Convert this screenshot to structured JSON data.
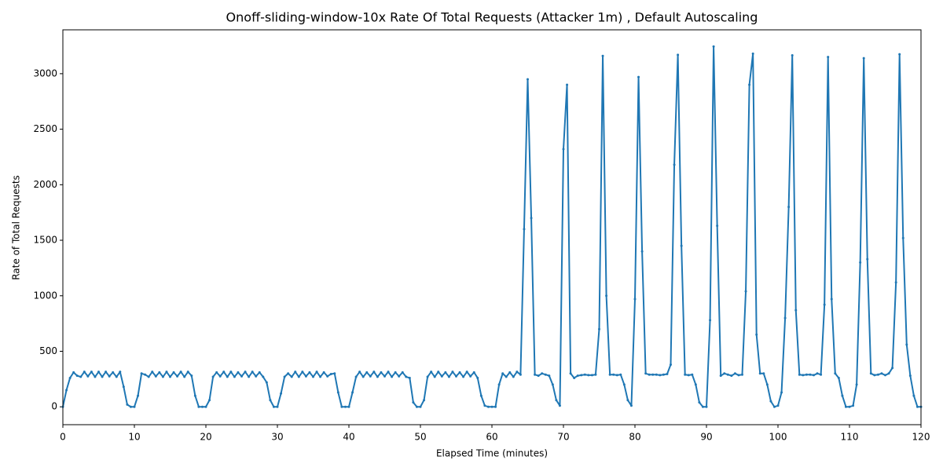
{
  "chart_data": {
    "type": "line",
    "title": "Onoff-sliding-window-10x Rate Of Total Requests (Attacker 1m) , Default Autoscaling",
    "xlabel": "Elapsed Time (minutes)",
    "ylabel": "Rate of Total Requests",
    "xlim": [
      0,
      120
    ],
    "xticks": [
      0,
      10,
      20,
      30,
      40,
      50,
      60,
      70,
      80,
      90,
      100,
      110,
      120
    ],
    "ylim": [
      -161,
      3395
    ],
    "yticks": [
      0,
      500,
      1000,
      1500,
      2000,
      2500,
      3000
    ],
    "grid": false,
    "x": [
      0,
      0.5,
      1,
      1.5,
      2,
      2.5,
      3,
      3.5,
      4,
      4.5,
      5,
      5.5,
      6,
      6.5,
      7,
      7.5,
      8,
      8.5,
      9,
      9.5,
      10,
      10.5,
      11,
      11.5,
      12,
      12.5,
      13,
      13.5,
      14,
      14.5,
      15,
      15.5,
      16,
      16.5,
      17,
      17.5,
      18,
      18.5,
      19,
      19.5,
      20,
      20.5,
      21,
      21.5,
      22,
      22.5,
      23,
      23.5,
      24,
      24.5,
      25,
      25.5,
      26,
      26.5,
      27,
      27.5,
      28,
      28.5,
      29,
      29.5,
      30,
      30.5,
      31,
      31.5,
      32,
      32.5,
      33,
      33.5,
      34,
      34.5,
      35,
      35.5,
      36,
      36.5,
      37,
      37.5,
      38,
      38.5,
      39,
      39.5,
      40,
      40.5,
      41,
      41.5,
      42,
      42.5,
      43,
      43.5,
      44,
      44.5,
      45,
      45.5,
      46,
      46.5,
      47,
      47.5,
      48,
      48.5,
      49,
      49.5,
      50,
      50.5,
      51,
      51.5,
      52,
      52.5,
      53,
      53.5,
      54,
      54.5,
      55,
      55.5,
      56,
      56.5,
      57,
      57.5,
      58,
      58.5,
      59,
      59.5,
      60,
      60.5,
      61,
      61.5,
      62,
      62.5,
      63,
      63.5,
      64,
      64.5,
      65,
      65.5,
      66,
      66.5,
      67,
      67.5,
      68,
      68.5,
      69,
      69.5,
      70,
      70.5,
      71,
      71.5,
      72,
      72.5,
      73,
      73.5,
      74,
      74.5,
      75,
      75.5,
      76,
      76.5,
      77,
      77.5,
      78,
      78.5,
      79,
      79.5,
      80,
      80.5,
      81,
      81.5,
      82,
      82.5,
      83,
      83.5,
      84,
      84.5,
      85,
      85.5,
      86,
      86.5,
      87,
      87.5,
      88,
      88.5,
      89,
      89.5,
      90,
      90.5,
      91,
      91.5,
      92,
      92.5,
      93,
      93.5,
      94,
      94.5,
      95,
      95.5,
      96,
      96.5,
      97,
      97.5,
      98,
      98.5,
      99,
      99.5,
      100,
      100.5,
      101,
      101.5,
      102,
      102.5,
      103,
      103.5,
      104,
      104.5,
      105,
      105.5,
      106,
      106.5,
      107,
      107.5,
      108,
      108.5,
      109,
      109.5,
      110,
      110.5,
      111,
      111.5,
      112,
      112.5,
      113,
      113.5,
      114,
      114.5,
      115,
      115.5,
      116,
      116.5,
      117,
      117.5,
      118,
      118.5,
      119,
      119.5,
      120
    ],
    "series": [
      {
        "color": "#1f77b4",
        "values": [
          0,
          150,
          260,
          310,
          280,
          270,
          315,
          275,
          315,
          270,
          315,
          270,
          315,
          275,
          310,
          270,
          315,
          180,
          20,
          0,
          0,
          100,
          300,
          290,
          270,
          315,
          275,
          310,
          270,
          315,
          270,
          310,
          275,
          315,
          270,
          315,
          280,
          100,
          0,
          0,
          0,
          60,
          270,
          310,
          275,
          315,
          270,
          315,
          270,
          310,
          275,
          315,
          270,
          315,
          275,
          310,
          270,
          220,
          60,
          0,
          0,
          120,
          270,
          300,
          270,
          315,
          270,
          315,
          275,
          310,
          270,
          315,
          270,
          310,
          275,
          295,
          300,
          130,
          0,
          0,
          0,
          130,
          270,
          315,
          270,
          310,
          275,
          315,
          270,
          310,
          275,
          315,
          270,
          310,
          275,
          310,
          270,
          260,
          40,
          0,
          0,
          60,
          270,
          315,
          270,
          315,
          275,
          310,
          270,
          315,
          275,
          310,
          270,
          315,
          275,
          310,
          260,
          100,
          10,
          0,
          0,
          0,
          200,
          300,
          270,
          310,
          270,
          315,
          290,
          1600,
          2950,
          1700,
          290,
          280,
          300,
          290,
          280,
          200,
          60,
          10,
          2320,
          2900,
          300,
          260,
          280,
          285,
          290,
          285,
          285,
          290,
          700,
          3160,
          1000,
          290,
          290,
          285,
          290,
          200,
          60,
          10,
          970,
          2970,
          1400,
          300,
          290,
          290,
          290,
          285,
          290,
          295,
          380,
          2180,
          3170,
          1450,
          290,
          285,
          290,
          200,
          40,
          0,
          0,
          780,
          3245,
          1630,
          280,
          300,
          290,
          280,
          300,
          285,
          290,
          1040,
          2900,
          3180,
          650,
          300,
          300,
          200,
          50,
          0,
          10,
          130,
          800,
          1800,
          3165,
          870,
          290,
          285,
          290,
          290,
          285,
          300,
          290,
          920,
          3150,
          970,
          300,
          260,
          100,
          0,
          0,
          10,
          200,
          1300,
          3140,
          1330,
          300,
          285,
          290,
          300,
          285,
          300,
          350,
          1120,
          3175,
          1520,
          560,
          280,
          100,
          0,
          0
        ]
      }
    ]
  }
}
